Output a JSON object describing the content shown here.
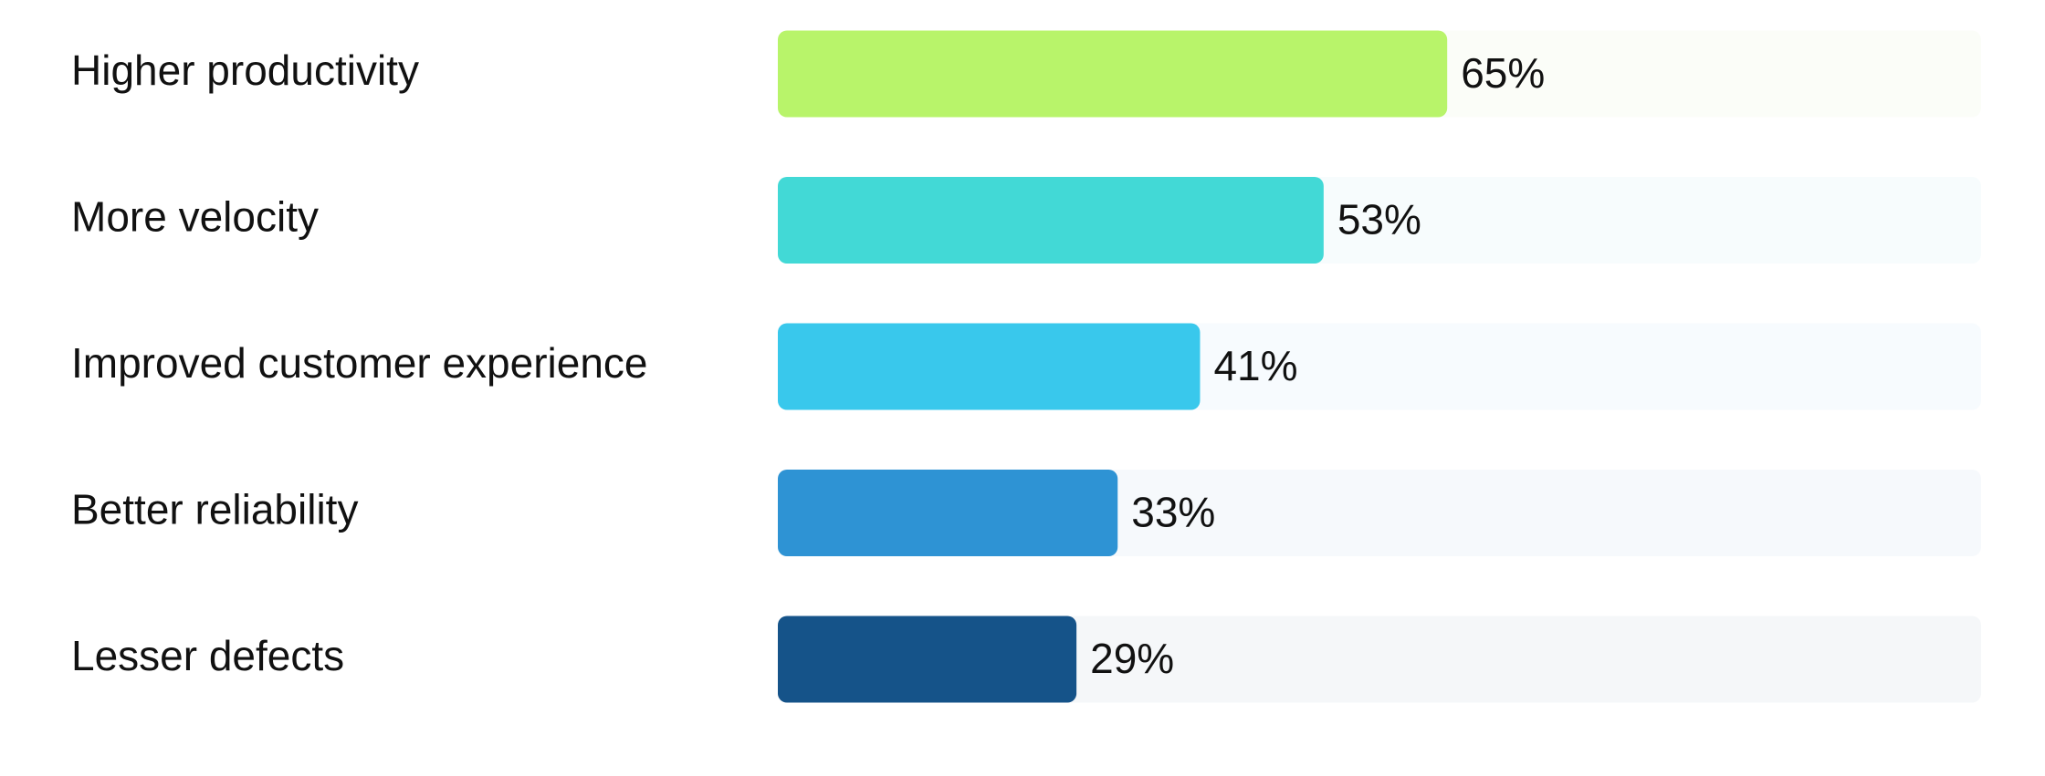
{
  "chart_data": {
    "type": "bar",
    "orientation": "horizontal",
    "categories": [
      "Higher productivity",
      "More velocity",
      "Improved customer experience",
      "Better reliability",
      "Lesser defects"
    ],
    "values": [
      65,
      53,
      41,
      33,
      29
    ],
    "value_labels": [
      "65%",
      "53%",
      "41%",
      "33%",
      "29%"
    ],
    "unit": "%",
    "xlim": [
      0,
      100
    ],
    "grid": false,
    "legend": "none",
    "bar_colors": [
      "#b8f46a",
      "#42d9d6",
      "#39c8ec",
      "#2e93d4",
      "#155389"
    ],
    "track_colors": [
      "#fbfdf8",
      "#f7fcfd",
      "#f7fbfe",
      "#f6f9fc",
      "#f5f7f9"
    ]
  }
}
